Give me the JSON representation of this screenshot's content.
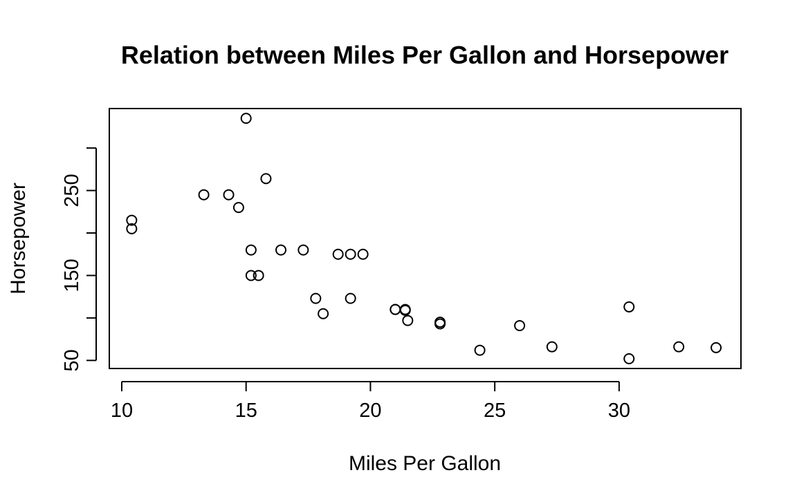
{
  "chart_data": {
    "type": "scatter",
    "title": "Relation between Miles Per Gallon and Horsepower",
    "xlabel": "Miles Per Gallon",
    "ylabel": "Horsepower",
    "xlim": [
      9.5,
      34.9
    ],
    "ylim": [
      40.5,
      346.5
    ],
    "xticks": [
      10,
      15,
      20,
      25,
      30
    ],
    "xtick_labels": [
      "10",
      "15",
      "20",
      "25",
      "30"
    ],
    "yticks": [
      50,
      100,
      150,
      200,
      250,
      300
    ],
    "ytick_labels": [
      "50",
      "",
      "150",
      "",
      "250",
      ""
    ],
    "grid": false,
    "marker": "open-circle",
    "color": "#000000",
    "points": [
      {
        "x": 21.0,
        "y": 110
      },
      {
        "x": 21.0,
        "y": 110
      },
      {
        "x": 22.8,
        "y": 93
      },
      {
        "x": 21.4,
        "y": 110
      },
      {
        "x": 18.7,
        "y": 175
      },
      {
        "x": 18.1,
        "y": 105
      },
      {
        "x": 14.3,
        "y": 245
      },
      {
        "x": 24.4,
        "y": 62
      },
      {
        "x": 22.8,
        "y": 95
      },
      {
        "x": 19.2,
        "y": 123
      },
      {
        "x": 17.8,
        "y": 123
      },
      {
        "x": 16.4,
        "y": 180
      },
      {
        "x": 17.3,
        "y": 180
      },
      {
        "x": 15.2,
        "y": 180
      },
      {
        "x": 10.4,
        "y": 205
      },
      {
        "x": 10.4,
        "y": 215
      },
      {
        "x": 14.7,
        "y": 230
      },
      {
        "x": 32.4,
        "y": 66
      },
      {
        "x": 30.4,
        "y": 52
      },
      {
        "x": 33.9,
        "y": 65
      },
      {
        "x": 21.5,
        "y": 97
      },
      {
        "x": 15.5,
        "y": 150
      },
      {
        "x": 15.2,
        "y": 150
      },
      {
        "x": 13.3,
        "y": 245
      },
      {
        "x": 19.2,
        "y": 175
      },
      {
        "x": 27.3,
        "y": 66
      },
      {
        "x": 26.0,
        "y": 91
      },
      {
        "x": 30.4,
        "y": 113
      },
      {
        "x": 15.8,
        "y": 264
      },
      {
        "x": 19.7,
        "y": 175
      },
      {
        "x": 15.0,
        "y": 335
      },
      {
        "x": 21.4,
        "y": 109
      }
    ]
  }
}
